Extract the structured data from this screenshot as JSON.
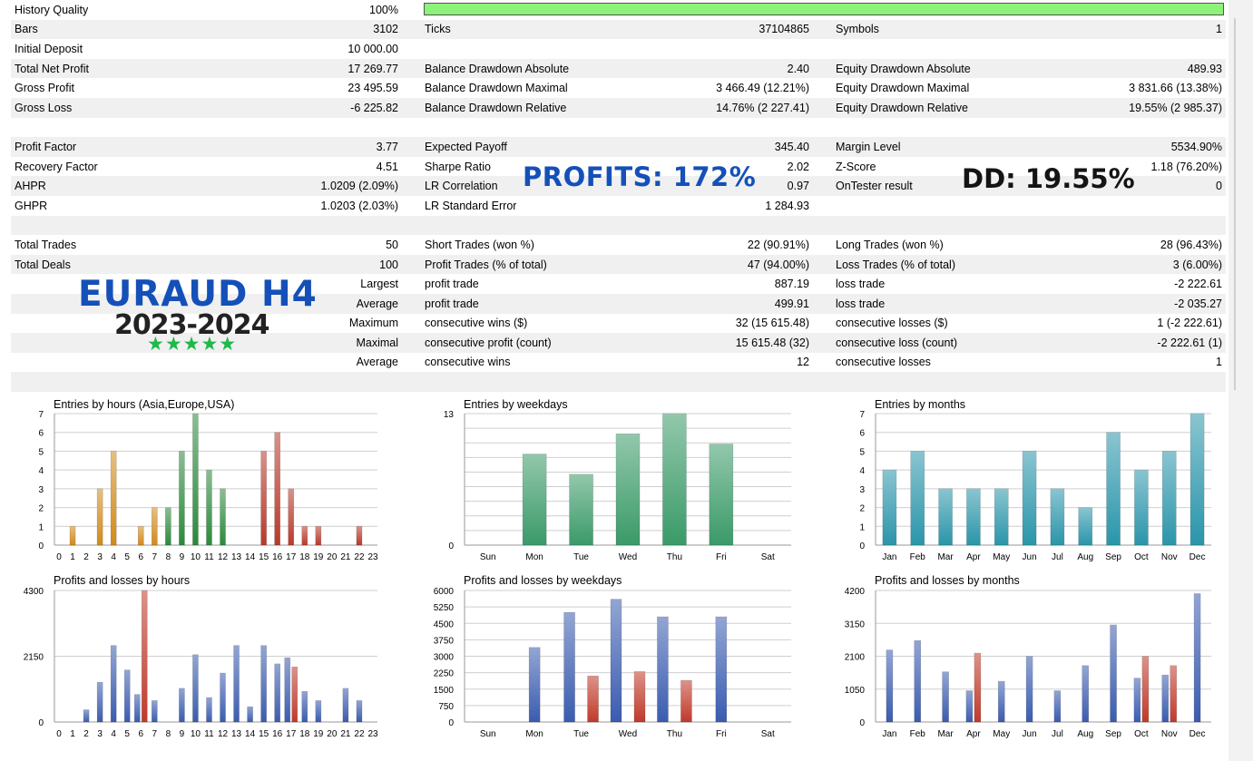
{
  "report": {
    "rows": [
      {
        "c1": "History Quality",
        "v1": "100%",
        "c2": "",
        "v2": "",
        "c3": "",
        "v3": "",
        "bar": true
      },
      {
        "c1": "Bars",
        "v1": "3102",
        "c2": "Ticks",
        "v2": "37104865",
        "c3": "Symbols",
        "v3": "1"
      },
      {
        "c1": "Initial Deposit",
        "v1": "10 000.00",
        "c2": "",
        "v2": "",
        "c3": "",
        "v3": ""
      },
      {
        "c1": "Total Net Profit",
        "v1": "17 269.77",
        "c2": "Balance Drawdown Absolute",
        "v2": "2.40",
        "c3": "Equity Drawdown Absolute",
        "v3": "489.93"
      },
      {
        "c1": "Gross Profit",
        "v1": "23 495.59",
        "c2": "Balance Drawdown Maximal",
        "v2": "3 466.49 (12.21%)",
        "c3": "Equity Drawdown Maximal",
        "v3": "3 831.66 (13.38%)"
      },
      {
        "c1": "Gross Loss",
        "v1": "-6 225.82",
        "c2": "Balance Drawdown Relative",
        "v2": "14.76% (2 227.41)",
        "c3": "Equity Drawdown Relative",
        "v3": "19.55% (2 985.37)"
      },
      {
        "c1": "",
        "v1": "",
        "c2": "",
        "v2": "",
        "c3": "",
        "v3": ""
      },
      {
        "c1": "Profit Factor",
        "v1": "3.77",
        "c2": "Expected Payoff",
        "v2": "345.40",
        "c3": "Margin Level",
        "v3": "5534.90%"
      },
      {
        "c1": "Recovery Factor",
        "v1": "4.51",
        "c2": "Sharpe Ratio",
        "v2": "2.02",
        "c3": "Z-Score",
        "v3": "1.18 (76.20%)"
      },
      {
        "c1": "AHPR",
        "v1": "1.0209 (2.09%)",
        "c2": "LR Correlation",
        "v2": "0.97",
        "c3": "OnTester result",
        "v3": "0"
      },
      {
        "c1": "GHPR",
        "v1": "1.0203 (2.03%)",
        "c2": "LR Standard Error",
        "v2": "1 284.93",
        "c3": "",
        "v3": ""
      },
      {
        "c1": "",
        "v1": "",
        "c2": "",
        "v2": "",
        "c3": "",
        "v3": ""
      },
      {
        "c1": "Total Trades",
        "v1": "50",
        "c2": "Short Trades (won %)",
        "v2": "22 (90.91%)",
        "c3": "Long Trades (won %)",
        "v3": "28 (96.43%)"
      },
      {
        "c1": "Total Deals",
        "v1": "100",
        "c2": "Profit Trades (% of total)",
        "v2": "47 (94.00%)",
        "c3": "Loss Trades (% of total)",
        "v3": "3 (6.00%)"
      },
      {
        "c1": "",
        "v1": "Largest",
        "c2": "profit trade",
        "v2": "887.19",
        "c3": "loss trade",
        "v3": "-2 222.61"
      },
      {
        "c1": "",
        "v1": "Average",
        "c2": "profit trade",
        "v2": "499.91",
        "c3": "loss trade",
        "v3": "-2 035.27"
      },
      {
        "c1": "",
        "v1": "Maximum",
        "c2": "consecutive wins ($)",
        "v2": "32 (15 615.48)",
        "c3": "consecutive losses ($)",
        "v3": "1 (-2 222.61)"
      },
      {
        "c1": "",
        "v1": "Maximal",
        "c2": "consecutive profit (count)",
        "v2": "15 615.48 (32)",
        "c3": "consecutive loss (count)",
        "v3": "-2 222.61 (1)"
      },
      {
        "c1": "",
        "v1": "Average",
        "c2": "consecutive wins",
        "v2": "12",
        "c3": "consecutive losses",
        "v3": "1"
      },
      {
        "c1": "",
        "v1": "",
        "c2": "",
        "v2": "",
        "c3": "",
        "v3": ""
      }
    ]
  },
  "overlays": {
    "profits": "PROFITS: 172%",
    "dd": "DD: 19.55%",
    "pair": "EURAUD H4",
    "years": "2023-2024",
    "stars": "★★★★★"
  },
  "colors": {
    "asia": "#d38a1a",
    "europe": "#2a8a3a",
    "usa": "#b83a2a",
    "weekday": "#3a9a68",
    "month": "#2a95aa",
    "profit": "#3a5cb0",
    "loss": "#c03a2a"
  },
  "chart_data": [
    {
      "type": "bar",
      "title": "Entries by hours (Asia,Europe,USA)",
      "categories": [
        "0",
        "1",
        "2",
        "3",
        "4",
        "5",
        "6",
        "7",
        "8",
        "9",
        "10",
        "11",
        "12",
        "13",
        "14",
        "15",
        "16",
        "17",
        "18",
        "19",
        "20",
        "21",
        "22",
        "23"
      ],
      "values": [
        0,
        1,
        0,
        3,
        5,
        0,
        1,
        2,
        2,
        5,
        7,
        4,
        3,
        0,
        0,
        5,
        6,
        3,
        1,
        1,
        0,
        0,
        1,
        0
      ],
      "yticks": [
        "0",
        "1",
        "2",
        "3",
        "4",
        "5",
        "6",
        "7"
      ],
      "ylim": [
        0,
        7
      ]
    },
    {
      "type": "bar",
      "title": "Entries by weekdays",
      "categories": [
        "Sun",
        "Mon",
        "Tue",
        "Wed",
        "Thu",
        "Fri",
        "Sat"
      ],
      "values": [
        0,
        9,
        7,
        11,
        13,
        10,
        0
      ],
      "yticks": [
        "0",
        "13"
      ],
      "ylim": [
        0,
        13
      ]
    },
    {
      "type": "bar",
      "title": "Entries by months",
      "categories": [
        "Jan",
        "Feb",
        "Mar",
        "Apr",
        "May",
        "Jun",
        "Jul",
        "Aug",
        "Sep",
        "Oct",
        "Nov",
        "Dec"
      ],
      "values": [
        4,
        5,
        3,
        3,
        3,
        5,
        3,
        2,
        6,
        4,
        5,
        7
      ],
      "yticks": [
        "0",
        "1",
        "2",
        "3",
        "4",
        "5",
        "6",
        "7"
      ],
      "ylim": [
        0,
        7
      ]
    },
    {
      "type": "bar",
      "title": "Profits and losses by hours",
      "categories": [
        "0",
        "1",
        "2",
        "3",
        "4",
        "5",
        "6",
        "7",
        "8",
        "9",
        "10",
        "11",
        "12",
        "13",
        "14",
        "15",
        "16",
        "17",
        "18",
        "19",
        "20",
        "21",
        "22",
        "23"
      ],
      "series": [
        {
          "values": [
            0,
            0,
            400,
            1300,
            2500,
            1700,
            900,
            700,
            0,
            1100,
            2200,
            800,
            1600,
            2500,
            500,
            2500,
            1900,
            2100,
            1000,
            700,
            0,
            1100,
            700,
            0
          ]
        },
        {
          "values": [
            0,
            0,
            0,
            0,
            0,
            0,
            4300,
            0,
            0,
            0,
            0,
            0,
            0,
            0,
            0,
            0,
            0,
            1800,
            0,
            0,
            0,
            0,
            0,
            0
          ]
        }
      ],
      "yticks": [
        "0",
        "2150",
        "4300"
      ],
      "ylim": [
        0,
        4300
      ]
    },
    {
      "type": "bar",
      "title": "Profits and losses by weekdays",
      "categories": [
        "Sun",
        "Mon",
        "Tue",
        "Wed",
        "Thu",
        "Fri",
        "Sat"
      ],
      "series": [
        {
          "values": [
            0,
            3400,
            5000,
            5600,
            4800,
            4800,
            0
          ]
        },
        {
          "values": [
            0,
            0,
            2100,
            2300,
            1900,
            0,
            0
          ]
        }
      ],
      "yticks": [
        "0",
        "750",
        "1500",
        "2250",
        "3000",
        "3750",
        "4500",
        "5250",
        "6000"
      ],
      "ylim": [
        0,
        6000
      ]
    },
    {
      "type": "bar",
      "title": "Profits and losses by months",
      "categories": [
        "Jan",
        "Feb",
        "Mar",
        "Apr",
        "May",
        "Jun",
        "Jul",
        "Aug",
        "Sep",
        "Oct",
        "Nov",
        "Dec"
      ],
      "series": [
        {
          "values": [
            2300,
            2600,
            1600,
            1000,
            1300,
            2100,
            1000,
            1800,
            3100,
            1400,
            1500,
            4100
          ]
        },
        {
          "values": [
            0,
            0,
            0,
            2200,
            0,
            0,
            0,
            0,
            0,
            2100,
            1800,
            0
          ]
        }
      ],
      "yticks": [
        "0",
        "1050",
        "2100",
        "3150",
        "4200"
      ],
      "ylim": [
        0,
        4200
      ]
    }
  ]
}
